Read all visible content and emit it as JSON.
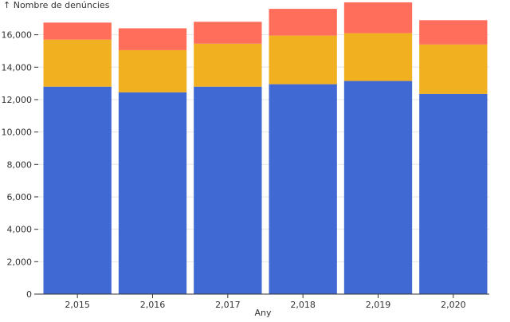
{
  "chart_data": {
    "type": "bar",
    "stacked": true,
    "categories": [
      "2,015",
      "2,016",
      "2,017",
      "2,018",
      "2,019",
      "2,020"
    ],
    "series": [
      {
        "values": [
          12800,
          12450,
          12800,
          12950,
          13150,
          12350
        ],
        "color": "#4169d4"
      },
      {
        "values": [
          2900,
          2600,
          2650,
          3000,
          2950,
          3050
        ],
        "color": "#f0b020"
      },
      {
        "values": [
          1050,
          1350,
          1350,
          1650,
          1900,
          1500
        ],
        "color": "#ff6e5a"
      }
    ],
    "ylabel": "↑ Nombre de denúncies",
    "xlabel": "Any",
    "ylim": [
      0,
      17850
    ],
    "yticks": [
      0,
      2000,
      4000,
      6000,
      8000,
      10000,
      12000,
      14000,
      16000
    ],
    "ytick_labels": [
      "0",
      "2,000",
      "4,000",
      "6,000",
      "8,000",
      "10,000",
      "12,000",
      "14,000",
      "16,000"
    ],
    "grid": true,
    "legend": "none"
  }
}
